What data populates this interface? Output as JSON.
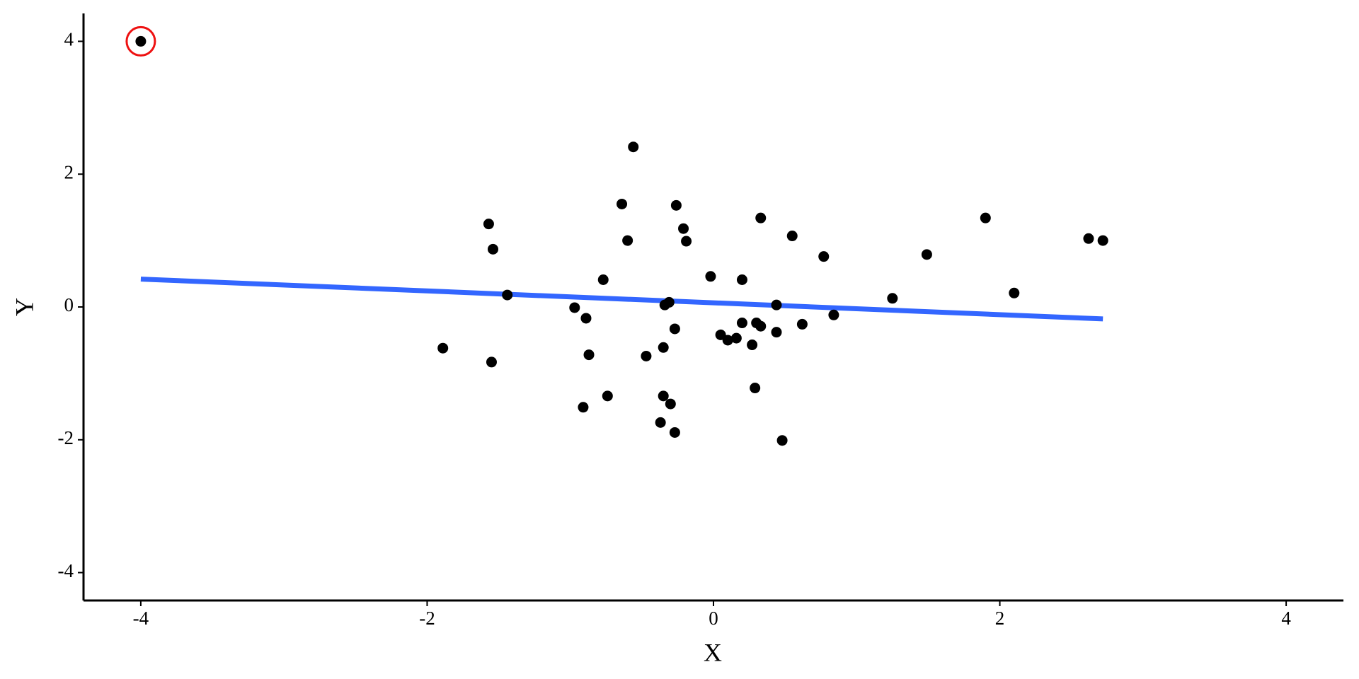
{
  "chart_data": {
    "type": "scatter",
    "xlabel": "X",
    "ylabel": "Y",
    "xlim": [
      -4.4,
      4.4
    ],
    "ylim": [
      -4.42,
      4.42
    ],
    "xticks": [
      -4,
      -2,
      0,
      2,
      4
    ],
    "yticks": [
      -4,
      -2,
      0,
      2,
      4
    ],
    "points": {
      "color": "#000000",
      "x": [
        -4,
        -0.56,
        -0.64,
        -0.26,
        -1.57,
        0.33,
        -0.21,
        -0.6,
        -0.19,
        0.55,
        -1.54,
        0.77,
        1.49,
        1.9,
        2.62,
        2.72,
        -0.77,
        -0.02,
        0.2,
        -1.44,
        2.1,
        1.25,
        -0.97,
        -0.89,
        -0.34,
        -0.31,
        0.44,
        0.84,
        -0.27,
        0.05,
        0.1,
        0.16,
        0.2,
        0.27,
        0.3,
        0.33,
        0.44,
        0.62,
        -1.89,
        -1.55,
        -0.87,
        -0.47,
        -0.35,
        0.29,
        -0.74,
        -0.35,
        -0.3,
        -0.91,
        -0.37,
        -0.27,
        0.48
      ],
      "y": [
        4,
        2.41,
        1.55,
        1.53,
        1.25,
        1.34,
        1.18,
        1.0,
        0.99,
        1.07,
        0.87,
        0.76,
        0.79,
        1.34,
        1.03,
        1.0,
        0.41,
        0.46,
        0.41,
        0.18,
        0.21,
        0.13,
        -0.01,
        -0.17,
        0.03,
        0.07,
        0.03,
        -0.12,
        -0.33,
        -0.42,
        -0.5,
        -0.47,
        -0.24,
        -0.57,
        -0.24,
        -0.29,
        -0.38,
        -0.26,
        -0.62,
        -0.83,
        -0.72,
        -0.74,
        -0.61,
        -1.22,
        -1.34,
        -1.34,
        -1.46,
        -1.51,
        -1.74,
        -1.89,
        -2.01
      ]
    },
    "fit": {
      "color": "#3366ff",
      "x": [
        -4,
        2.72
      ],
      "y": [
        0.42,
        -0.18
      ]
    },
    "highlight": {
      "color": "#ee1111",
      "x": -4,
      "y": 4
    }
  }
}
